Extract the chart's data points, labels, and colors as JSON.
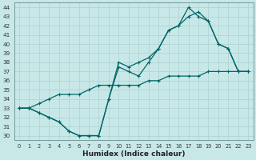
{
  "xlabel": "Humidex (Indice chaleur)",
  "ylabel": "",
  "background_color": "#c8e8e8",
  "grid_color": "#b0d4d4",
  "line_color": "#006666",
  "xlim": [
    -0.5,
    23.5
  ],
  "ylim": [
    29.5,
    44.5
  ],
  "xticks": [
    0,
    1,
    2,
    3,
    4,
    5,
    6,
    7,
    8,
    9,
    10,
    11,
    12,
    13,
    14,
    15,
    16,
    17,
    18,
    19,
    20,
    21,
    22,
    23
  ],
  "yticks": [
    30,
    31,
    32,
    33,
    34,
    35,
    36,
    37,
    38,
    39,
    40,
    41,
    42,
    43,
    44
  ],
  "series1_x": [
    0,
    1,
    2,
    3,
    4,
    5,
    6,
    7,
    8,
    9,
    10,
    11,
    12,
    13,
    14,
    15,
    16,
    17,
    18,
    19,
    20,
    21,
    22,
    23
  ],
  "series1_y": [
    33.0,
    33.0,
    33.5,
    34.0,
    34.5,
    34.5,
    34.5,
    35.0,
    35.5,
    35.5,
    35.5,
    35.5,
    35.5,
    36.0,
    36.0,
    36.5,
    36.5,
    36.5,
    36.5,
    37.0,
    37.0,
    37.0,
    37.0,
    37.0
  ],
  "series2_x": [
    0,
    1,
    2,
    3,
    4,
    5,
    6,
    7,
    8,
    9,
    10,
    11,
    12,
    13,
    14,
    15,
    16,
    17,
    18,
    19,
    20,
    21,
    22,
    23
  ],
  "series2_y": [
    33.0,
    33.0,
    32.5,
    32.0,
    31.5,
    30.5,
    30.0,
    30.0,
    30.0,
    34.0,
    37.5,
    37.0,
    36.5,
    38.0,
    39.5,
    41.5,
    42.0,
    43.0,
    43.5,
    42.5,
    40.0,
    39.5,
    37.0,
    37.0
  ],
  "series3_x": [
    0,
    1,
    2,
    3,
    4,
    5,
    6,
    7,
    8,
    9,
    10,
    11,
    12,
    13,
    14,
    15,
    16,
    17,
    18,
    19,
    20,
    21,
    22,
    23
  ],
  "series3_y": [
    33.0,
    33.0,
    32.5,
    32.0,
    31.5,
    30.5,
    30.0,
    30.0,
    30.0,
    34.0,
    38.0,
    37.5,
    38.0,
    38.5,
    39.5,
    41.5,
    42.0,
    44.0,
    43.0,
    42.5,
    40.0,
    39.5,
    37.0,
    37.0
  ]
}
